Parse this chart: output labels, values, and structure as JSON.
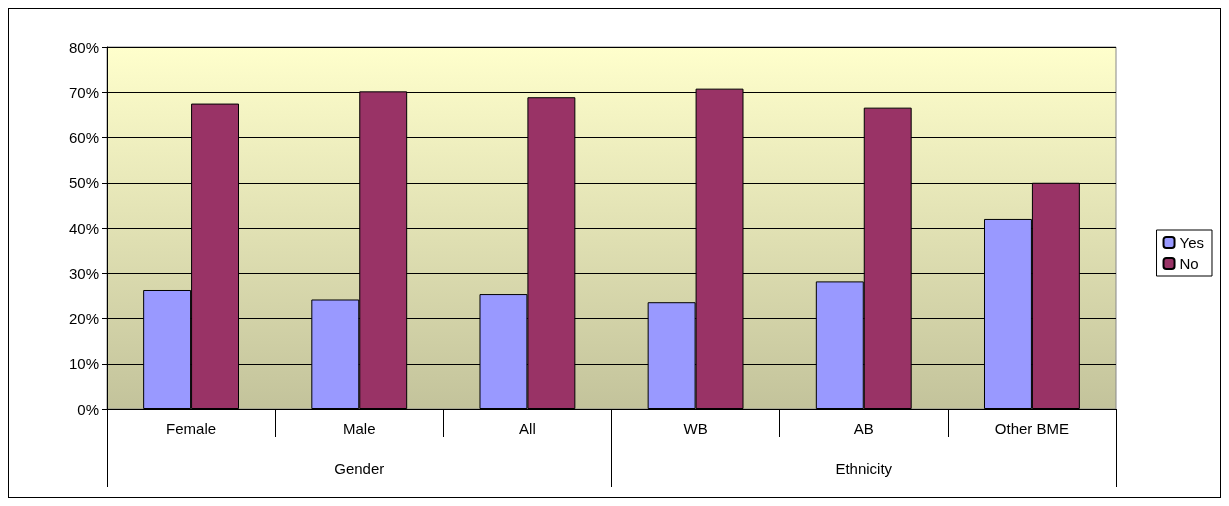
{
  "chart_data": {
    "type": "bar",
    "categories": [
      "Female",
      "Male",
      "All",
      "WB",
      "AB",
      "Other BME"
    ],
    "series": [
      {
        "name": "Yes",
        "color": "#9999ff",
        "values": [
          26.3,
          24.2,
          25.4,
          23.6,
          28.2,
          42.0
        ]
      },
      {
        "name": "No",
        "color": "#993366",
        "values": [
          67.5,
          70.2,
          68.9,
          70.8,
          66.6,
          50.0
        ]
      }
    ],
    "annotations": [
      "Gender",
      "Ethnicity"
    ],
    "ylim": [
      0,
      80
    ],
    "yticks": [
      {
        "value": 0,
        "label": "0%"
      },
      {
        "value": 10,
        "label": "10%"
      },
      {
        "value": 20,
        "label": "20%"
      },
      {
        "value": 30,
        "label": "30%"
      },
      {
        "value": 40,
        "label": "40%"
      },
      {
        "value": 50,
        "label": "50%"
      },
      {
        "value": 60,
        "label": "60%"
      },
      {
        "value": 70,
        "label": "70%"
      },
      {
        "value": 80,
        "label": "80%"
      }
    ],
    "grid": "y",
    "legend": "right"
  }
}
